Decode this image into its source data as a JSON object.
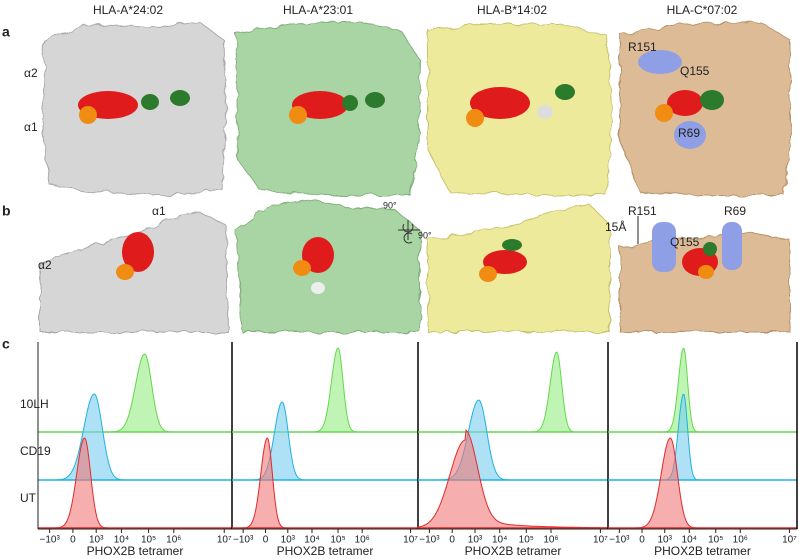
{
  "column_titles": [
    "HLA-A*24:02",
    "HLA-A*23:01",
    "HLA-B*14:02",
    "HLA-C*07:02"
  ],
  "panel_a": {
    "label": "a",
    "alpha2": "α2",
    "alpha1": "α1",
    "residues": [
      "R151",
      "Q155",
      "R69"
    ]
  },
  "panel_b": {
    "label": "b",
    "alpha2": "α2",
    "alpha1": "α1",
    "rotation": [
      "90°",
      "90°"
    ],
    "residues": [
      "R151",
      "Q155",
      "R69"
    ],
    "distance": "15Å"
  },
  "panel_c": {
    "label": "c",
    "rows": [
      "10LH",
      "CD19",
      "UT"
    ],
    "x_ticks": [
      "−10³",
      "0",
      "10³",
      "10⁴",
      "10⁵",
      "10⁶",
      "10⁷"
    ],
    "x_axis_label": "PHOX2B tetramer"
  }
}
